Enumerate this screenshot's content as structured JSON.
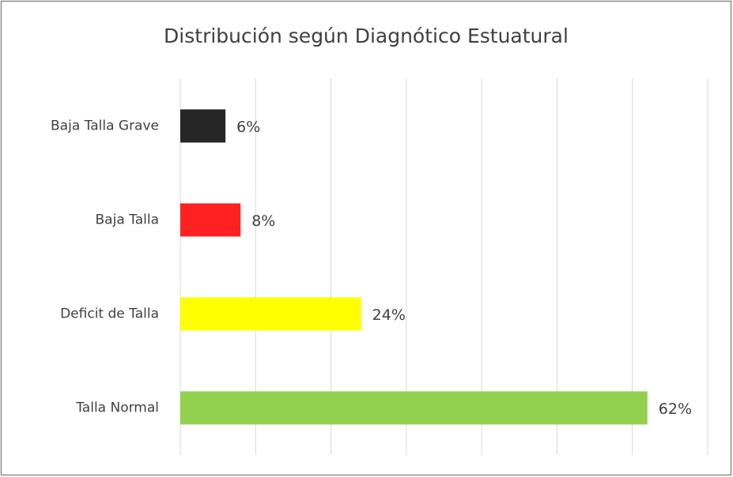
{
  "chart_data": {
    "type": "hbar",
    "title": "Distribución según Diagnótico Estuatural",
    "categories": [
      "Baja Talla Grave",
      "Baja Talla",
      "Deficit de Talla",
      "Talla Normal"
    ],
    "values": [
      6,
      8,
      24,
      62
    ],
    "value_labels": [
      "6%",
      "8%",
      "24%",
      "62%"
    ],
    "colors": [
      "#262626",
      "#ff2121",
      "#ffff00",
      "#92d050"
    ],
    "xlim": [
      0,
      70
    ],
    "xticks": [
      0,
      10,
      20,
      30,
      40,
      50,
      60,
      70
    ],
    "grid": true
  }
}
